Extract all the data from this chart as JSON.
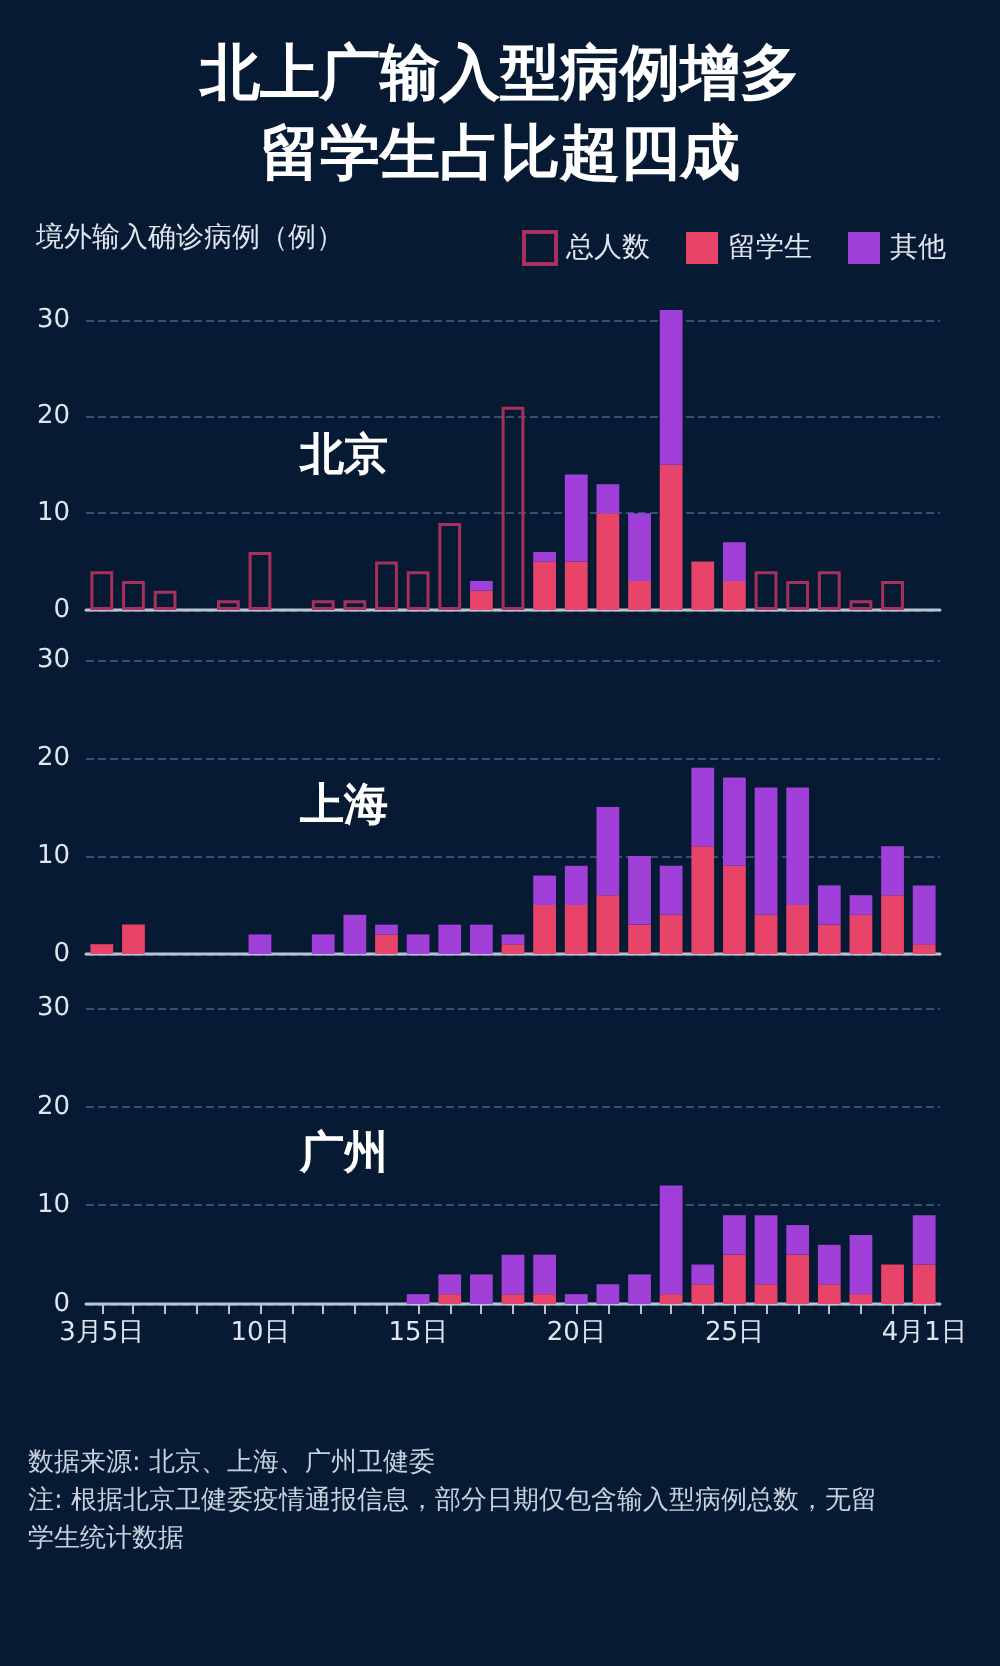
{
  "chart_data": [
    {
      "type": "bar",
      "title": "北上广输入型病例增多留学生占比超四成",
      "ylabel": "境外输入确诊病例（例）",
      "annotations": [
        "北京"
      ],
      "stacked": true,
      "legend": "top right",
      "grid": "y",
      "tick_labels": "y",
      "categories": [
        null,
        null,
        null,
        null,
        null,
        null,
        null,
        null,
        null,
        null,
        null,
        null,
        null,
        null,
        null,
        null,
        null,
        null,
        null,
        null,
        null,
        null,
        null,
        null,
        null,
        null,
        null
      ],
      "ylim": [
        0,
        31
      ],
      "yticks": [
        0,
        10,
        20,
        30
      ],
      "series": [
        {
          "name": "总人数",
          "color": "#a8305c",
          "values": [
            4,
            3,
            2,
            null,
            1,
            6,
            null,
            1,
            1,
            5,
            4,
            9,
            null,
            21,
            null,
            null,
            null,
            null,
            null,
            null,
            null,
            4,
            3,
            4,
            1,
            3,
            null
          ]
        },
        {
          "name": "留学生",
          "color": "#e8446a",
          "values": [
            null,
            null,
            null,
            null,
            null,
            null,
            null,
            null,
            null,
            null,
            null,
            null,
            2,
            null,
            5,
            5,
            10,
            3,
            15,
            5,
            3,
            null,
            null,
            null,
            null,
            null,
            null
          ]
        },
        {
          "name": "其他",
          "color": "#a040d8",
          "values": [
            null,
            null,
            null,
            null,
            null,
            null,
            null,
            null,
            null,
            null,
            null,
            null,
            1,
            null,
            1,
            9,
            3,
            7,
            16,
            null,
            4,
            null,
            null,
            null,
            null,
            null,
            null
          ]
        }
      ]
    },
    {
      "type": "bar",
      "annotations": [
        "上海"
      ],
      "stacked": true,
      "grid": "y",
      "tick_labels": "y",
      "categories": [
        null,
        null,
        null,
        null,
        null,
        null,
        null,
        null,
        null,
        null,
        null,
        null,
        null,
        null,
        null,
        null,
        null,
        null,
        null,
        null,
        null,
        null,
        null,
        null,
        null,
        null,
        null
      ],
      "ylim": [
        0,
        30
      ],
      "yticks": [
        0,
        10,
        20,
        30
      ],
      "series": [
        {
          "color": "#e8446a",
          "values": [
            1,
            3,
            null,
            null,
            null,
            null,
            null,
            null,
            null,
            2,
            null,
            null,
            null,
            1,
            5,
            5,
            6,
            3,
            4,
            11,
            9,
            4,
            5,
            3,
            4,
            6,
            1
          ]
        },
        {
          "color": "#a040d8",
          "values": [
            null,
            null,
            null,
            null,
            null,
            2,
            null,
            2,
            4,
            1,
            2,
            3,
            3,
            1,
            3,
            4,
            9,
            7,
            5,
            8,
            9,
            13,
            12,
            4,
            2,
            5,
            6
          ]
        }
      ]
    },
    {
      "type": "bar",
      "annotations": [
        "广州",
        "数据来源: 北京、上海、广州卫健委",
        "注: 根据北京卫健委疫情通报信息，部分日期仅包含输入型病例总数，无留学生统计数据"
      ],
      "stacked": true,
      "grid": "y",
      "categories": [
        "3月5日",
        null,
        null,
        null,
        null,
        "10日",
        null,
        null,
        null,
        null,
        "15日",
        null,
        null,
        null,
        null,
        "20日",
        null,
        null,
        null,
        null,
        "25日",
        null,
        null,
        null,
        null,
        null,
        "4月1日"
      ],
      "ylim": [
        0,
        30
      ],
      "yticks": [
        0,
        10,
        20,
        30
      ],
      "series": [
        {
          "color": "#e8446a",
          "values": [
            null,
            null,
            null,
            null,
            null,
            null,
            null,
            null,
            null,
            null,
            null,
            1,
            null,
            1,
            1,
            null,
            null,
            null,
            1,
            2,
            5,
            2,
            5,
            2,
            1,
            4,
            4
          ]
        },
        {
          "color": "#a040d8",
          "values": [
            null,
            null,
            null,
            null,
            null,
            null,
            null,
            null,
            null,
            null,
            1,
            2,
            3,
            4,
            4,
            1,
            2,
            3,
            11,
            2,
            4,
            7,
            3,
            4,
            6,
            null,
            5
          ]
        }
      ]
    }
  ]
}
